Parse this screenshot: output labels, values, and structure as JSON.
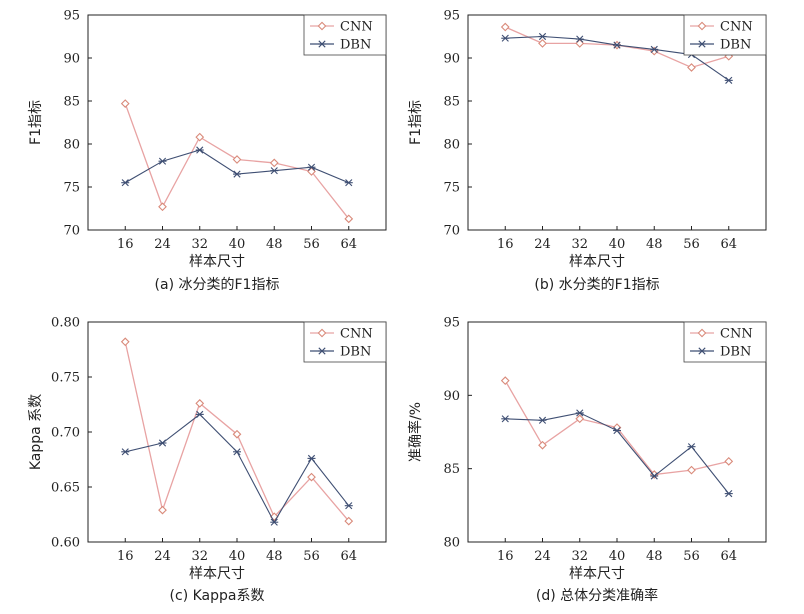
{
  "chart_data": [
    {
      "type": "line",
      "caption": "(a) 冰分类的F1指标",
      "xlabel": "样本尺寸",
      "ylabel": "F1指标",
      "x": [
        16,
        24,
        32,
        40,
        48,
        56,
        64
      ],
      "xticks": [
        "16",
        "24",
        "32",
        "40",
        "48",
        "56",
        "64"
      ],
      "ylim": [
        70,
        95
      ],
      "yticks": [
        "70",
        "75",
        "80",
        "85",
        "90",
        "95"
      ],
      "legend": "top-right",
      "series": [
        {
          "name": "CNN",
          "values": [
            84.7,
            72.7,
            80.8,
            78.2,
            77.8,
            76.8,
            71.3
          ]
        },
        {
          "name": "DBN",
          "values": [
            75.5,
            78.0,
            79.3,
            76.5,
            76.9,
            77.3,
            75.5
          ]
        }
      ]
    },
    {
      "type": "line",
      "caption": "(b) 水分类的F1指标",
      "xlabel": "样本尺寸",
      "ylabel": "F1指标",
      "x": [
        16,
        24,
        32,
        40,
        48,
        56,
        64
      ],
      "xticks": [
        "16",
        "24",
        "32",
        "40",
        "48",
        "56",
        "64"
      ],
      "ylim": [
        70,
        95
      ],
      "yticks": [
        "70",
        "75",
        "80",
        "85",
        "90",
        "95"
      ],
      "legend": "top-right",
      "series": [
        {
          "name": "CNN",
          "values": [
            93.6,
            91.7,
            91.7,
            91.5,
            90.8,
            88.9,
            90.2
          ]
        },
        {
          "name": "DBN",
          "values": [
            92.3,
            92.5,
            92.2,
            91.5,
            91.0,
            90.4,
            87.4
          ]
        }
      ]
    },
    {
      "type": "line",
      "caption": "(c) Kappa系数",
      "xlabel": "样本尺寸",
      "ylabel": "Kappa 系数",
      "x": [
        16,
        24,
        32,
        40,
        48,
        56,
        64
      ],
      "xticks": [
        "16",
        "24",
        "32",
        "40",
        "48",
        "56",
        "64"
      ],
      "ylim": [
        0.6,
        0.8
      ],
      "yticks": [
        "0.60",
        "0.65",
        "0.70",
        "0.75",
        "0.80"
      ],
      "legend": "top-right",
      "series": [
        {
          "name": "CNN",
          "values": [
            0.782,
            0.629,
            0.726,
            0.698,
            0.623,
            0.659,
            0.619
          ]
        },
        {
          "name": "DBN",
          "values": [
            0.682,
            0.69,
            0.716,
            0.682,
            0.618,
            0.676,
            0.633
          ]
        }
      ]
    },
    {
      "type": "line",
      "caption": "(d) 总体分类准确率",
      "xlabel": "样本尺寸",
      "ylabel": "准确率/%",
      "x": [
        16,
        24,
        32,
        40,
        48,
        56,
        64
      ],
      "xticks": [
        "16",
        "24",
        "32",
        "40",
        "48",
        "56",
        "64"
      ],
      "ylim": [
        80,
        95
      ],
      "yticks": [
        "80",
        "85",
        "90",
        "95"
      ],
      "legend": "top-right",
      "series": [
        {
          "name": "CNN",
          "values": [
            91.0,
            86.6,
            88.4,
            87.8,
            84.6,
            84.9,
            85.5
          ]
        },
        {
          "name": "DBN",
          "values": [
            88.4,
            88.3,
            88.8,
            87.6,
            84.5,
            86.5,
            83.3
          ]
        }
      ]
    }
  ],
  "colors": {
    "CNN": "#e8a3a3",
    "CNN_marker": "#d98a7a",
    "DBN": "#3f4f73"
  }
}
